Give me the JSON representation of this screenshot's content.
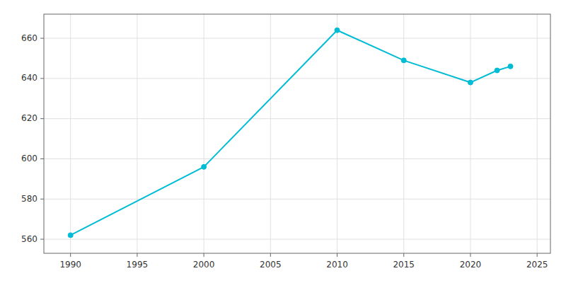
{
  "chart_data": {
    "type": "line",
    "x": [
      1990,
      2000,
      2010,
      2015,
      2020,
      2022,
      2023
    ],
    "values": [
      562,
      596,
      664,
      649,
      638,
      644,
      646
    ],
    "color": "#00bcd4",
    "marker": "circle",
    "xlim": [
      1988,
      2026
    ],
    "ylim": [
      553,
      672
    ],
    "xticks": [
      1990,
      1995,
      2000,
      2005,
      2010,
      2015,
      2020,
      2025
    ],
    "yticks": [
      560,
      580,
      600,
      620,
      640,
      660
    ],
    "grid": true
  }
}
